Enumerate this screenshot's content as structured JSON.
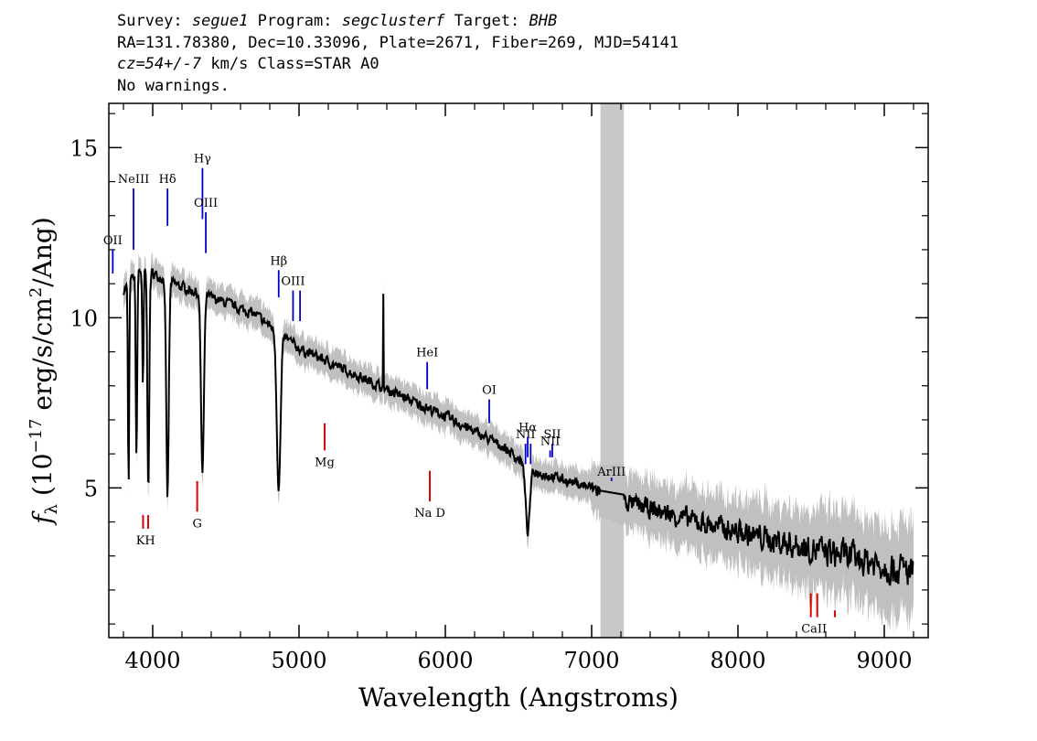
{
  "header": {
    "survey_label": "Survey:",
    "survey": "segue1",
    "program_label": "Program:",
    "program": "segclusterf",
    "target_label": "Target:",
    "target": "BHB",
    "line2": "RA=131.78380, Dec=10.33096, Plate=2671, Fiber=269, MJD=54141",
    "cz": "cz=54+/-7",
    "cz_rest": " km/s Class=STAR A0",
    "line4": "No warnings."
  },
  "chart_data": {
    "type": "line",
    "xlabel": "Wavelength (Angstroms)",
    "ylabel_prefix": "f",
    "ylabel_sub": "λ",
    "ylabel_main": " (10",
    "ylabel_exp": "−17",
    "ylabel_rest": " erg/s/cm",
    "ylabel_exp2": "2",
    "ylabel_end": "/Ang)",
    "xlim": [
      3700,
      9300
    ],
    "ylim": [
      0.6,
      16.3
    ],
    "x_ticks": [
      4000,
      5000,
      6000,
      7000,
      8000,
      9000
    ],
    "x_tick_labels": [
      "4000",
      "5000",
      "6000",
      "7000",
      "8000",
      "9000"
    ],
    "y_ticks": [
      5,
      10,
      15
    ],
    "y_tick_labels": [
      "5",
      "10",
      "15"
    ],
    "masked_region": [
      7060,
      7220
    ],
    "continuum": [
      [
        3800,
        10.8
      ],
      [
        3900,
        11.4
      ],
      [
        4000,
        11.3
      ],
      [
        4200,
        10.9
      ],
      [
        4400,
        10.6
      ],
      [
        4700,
        10.1
      ],
      [
        5000,
        9.1
      ],
      [
        5300,
        8.5
      ],
      [
        5600,
        7.9
      ],
      [
        6000,
        7.1
      ],
      [
        6400,
        6.2
      ],
      [
        6600,
        5.5
      ],
      [
        7000,
        5.0
      ],
      [
        7300,
        4.5
      ],
      [
        7600,
        4.15
      ],
      [
        8000,
        3.7
      ],
      [
        8400,
        3.3
      ],
      [
        8800,
        2.95
      ],
      [
        9200,
        2.5
      ]
    ],
    "absorption_lines": [
      {
        "center": 3835,
        "depth": 6.0,
        "width": 6
      },
      {
        "center": 3889,
        "depth": 5.4,
        "width": 7
      },
      {
        "center": 3933,
        "depth": 3.5,
        "width": 6
      },
      {
        "center": 3970,
        "depth": 6.3,
        "width": 9
      },
      {
        "center": 4101,
        "depth": 6.4,
        "width": 12
      },
      {
        "center": 4340,
        "depth": 5.3,
        "width": 14
      },
      {
        "center": 4861,
        "depth": 4.6,
        "width": 18
      },
      {
        "center": 6563,
        "depth": 1.9,
        "width": 20
      }
    ],
    "emission_spikes": [
      {
        "center": 5577,
        "height": 2.6
      }
    ],
    "emission_labels": [
      {
        "label": "OII",
        "x": 3727,
        "top": 12.0,
        "bottom": 11.3
      },
      {
        "label": "NeIII",
        "x": 3869,
        "top": 13.8,
        "bottom": 12.0
      },
      {
        "label": "Hδ",
        "x": 4101,
        "top": 13.8,
        "bottom": 12.7
      },
      {
        "label": "Hγ",
        "x": 4340,
        "top": 14.4,
        "bottom": 12.9
      },
      {
        "label": "OIII",
        "x": 4363,
        "top": 13.1,
        "bottom": 11.9
      },
      {
        "label": "Hβ",
        "x": 4861,
        "top": 11.4,
        "bottom": 10.6
      },
      {
        "label": "OIII",
        "x": 4959,
        "top": 10.8,
        "bottom": 9.9
      },
      {
        "label": "",
        "x": 5007,
        "top": 10.8,
        "bottom": 9.9
      },
      {
        "label": "HeI",
        "x": 5876,
        "top": 8.7,
        "bottom": 7.9
      },
      {
        "label": "OI",
        "x": 6300,
        "top": 7.6,
        "bottom": 6.9
      },
      {
        "label": "NII",
        "x": 6548,
        "top": 6.3,
        "bottom": 5.7
      },
      {
        "label": "Hα",
        "x": 6563,
        "top": 6.5,
        "bottom": 5.9
      },
      {
        "label": "",
        "x": 6583,
        "top": 6.3,
        "bottom": 5.7
      },
      {
        "label": "NII",
        "x": 6716,
        "top": 6.1,
        "bottom": 5.9
      },
      {
        "label": "SII",
        "x": 6731,
        "top": 6.3,
        "bottom": 5.9
      },
      {
        "label": "ArIII",
        "x": 7136,
        "top": 5.2,
        "bottom": 5.3
      }
    ],
    "absorption_labels": [
      {
        "label": "KH",
        "x": 3934,
        "top": 4.2,
        "bottom": 3.8,
        "pair": 3969
      },
      {
        "label": "G",
        "x": 4304,
        "top": 5.2,
        "bottom": 4.3
      },
      {
        "label": "Mg",
        "x": 5175,
        "top": 6.9,
        "bottom": 6.1
      },
      {
        "label": "Na D",
        "x": 5894,
        "top": 5.5,
        "bottom": 4.6
      },
      {
        "label": "CaII",
        "x": 8498,
        "top": 1.9,
        "bottom": 1.2,
        "pair": 8542,
        "third": 8662
      }
    ],
    "colors": {
      "flux": "#000000",
      "error": "#c0c0c0",
      "mask": "#c8c8c8",
      "emission": "#0000c8",
      "absorption": "#dc0000",
      "text": "#000000"
    }
  }
}
